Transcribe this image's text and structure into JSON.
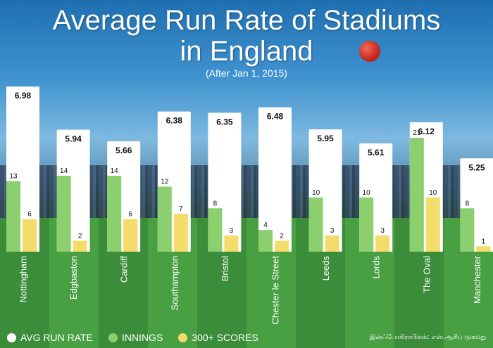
{
  "title_line1": "Average Run Rate of Stadiums",
  "title_line2": "in England",
  "subtitle": "(After Jan 1, 2015)",
  "legend": {
    "avg": "AVG RUN RATE",
    "innings": "INNINGS",
    "scores": "300+ SCORES"
  },
  "credit": "இன்ஃபோகிராபிக்ஸ்: எஸ்.ஆசிப் முகமது",
  "colors": {
    "avg": "#ffffff",
    "innings": "#8ccf6e",
    "scores": "#f3dc6a"
  },
  "chart_data": {
    "type": "bar",
    "categories": [
      "Nottingham",
      "Edgbaston",
      "Cardiff",
      "Southampton",
      "Bristol",
      "Chester le Street",
      "Leeds",
      "Lords",
      "The Oval",
      "Manchester"
    ],
    "series": [
      {
        "name": "AVG RUN RATE",
        "values": [
          6.98,
          5.94,
          5.66,
          6.38,
          6.35,
          6.48,
          5.95,
          5.61,
          6.12,
          5.25
        ],
        "labels": [
          "6.98",
          "5.94",
          "5.66",
          "6.38",
          "6.35",
          "6.48",
          "5.95",
          "5.61",
          "6.12",
          "5.25"
        ]
      },
      {
        "name": "INNINGS",
        "values": [
          13,
          14,
          14,
          12,
          8,
          4,
          10,
          10,
          21,
          8
        ]
      },
      {
        "name": "300+ SCORES",
        "values": [
          6,
          2,
          6,
          7,
          3,
          2,
          3,
          3,
          10,
          1
        ]
      }
    ],
    "ylim_innings": [
      0,
      25
    ]
  }
}
